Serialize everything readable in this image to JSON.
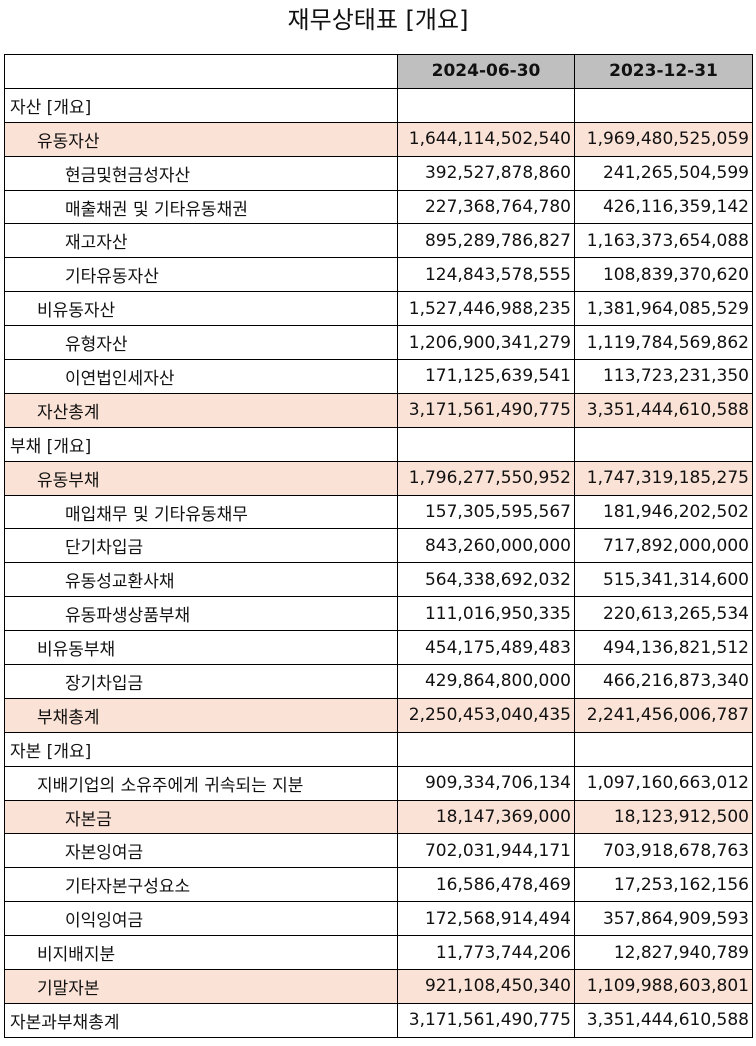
{
  "title": "재무상태표 [개요]",
  "columns": [
    "2024-06-30",
    "2023-12-31"
  ],
  "rows": [
    {
      "label": "자산 [개요]",
      "level": 0,
      "highlight": false,
      "values": [
        "",
        ""
      ]
    },
    {
      "label": "유동자산",
      "level": 1,
      "highlight": true,
      "values": [
        "1,644,114,502,540",
        "1,969,480,525,059"
      ]
    },
    {
      "label": "현금및현금성자산",
      "level": 2,
      "highlight": false,
      "values": [
        "392,527,878,860",
        "241,265,504,599"
      ]
    },
    {
      "label": "매출채권 및 기타유동채권",
      "level": 2,
      "highlight": false,
      "values": [
        "227,368,764,780",
        "426,116,359,142"
      ]
    },
    {
      "label": "재고자산",
      "level": 2,
      "highlight": false,
      "values": [
        "895,289,786,827",
        "1,163,373,654,088"
      ]
    },
    {
      "label": "기타유동자산",
      "level": 2,
      "highlight": false,
      "values": [
        "124,843,578,555",
        "108,839,370,620"
      ]
    },
    {
      "label": "비유동자산",
      "level": 1,
      "highlight": false,
      "values": [
        "1,527,446,988,235",
        "1,381,964,085,529"
      ]
    },
    {
      "label": "유형자산",
      "level": 2,
      "highlight": false,
      "values": [
        "1,206,900,341,279",
        "1,119,784,569,862"
      ]
    },
    {
      "label": "이연법인세자산",
      "level": 2,
      "highlight": false,
      "values": [
        "171,125,639,541",
        "113,723,231,350"
      ]
    },
    {
      "label": "자산총계",
      "level": 1,
      "highlight": true,
      "values": [
        "3,171,561,490,775",
        "3,351,444,610,588"
      ]
    },
    {
      "label": "부채 [개요]",
      "level": 0,
      "highlight": false,
      "values": [
        "",
        ""
      ]
    },
    {
      "label": "유동부채",
      "level": 1,
      "highlight": true,
      "values": [
        "1,796,277,550,952",
        "1,747,319,185,275"
      ]
    },
    {
      "label": "매입채무 및 기타유동채무",
      "level": 2,
      "highlight": false,
      "values": [
        "157,305,595,567",
        "181,946,202,502"
      ]
    },
    {
      "label": "단기차입금",
      "level": 2,
      "highlight": false,
      "values": [
        "843,260,000,000",
        "717,892,000,000"
      ]
    },
    {
      "label": "유동성교환사채",
      "level": 2,
      "highlight": false,
      "values": [
        "564,338,692,032",
        "515,341,314,600"
      ]
    },
    {
      "label": "유동파생상품부채",
      "level": 2,
      "highlight": false,
      "values": [
        "111,016,950,335",
        "220,613,265,534"
      ]
    },
    {
      "label": "비유동부채",
      "level": 1,
      "highlight": false,
      "values": [
        "454,175,489,483",
        "494,136,821,512"
      ]
    },
    {
      "label": "장기차입금",
      "level": 2,
      "highlight": false,
      "values": [
        "429,864,800,000",
        "466,216,873,340"
      ]
    },
    {
      "label": "부채총계",
      "level": 1,
      "highlight": true,
      "values": [
        "2,250,453,040,435",
        "2,241,456,006,787"
      ]
    },
    {
      "label": "자본 [개요]",
      "level": 0,
      "highlight": false,
      "values": [
        "",
        ""
      ]
    },
    {
      "label": "지배기업의 소유주에게 귀속되는 지분",
      "level": 1,
      "highlight": false,
      "values": [
        "909,334,706,134",
        "1,097,160,663,012"
      ]
    },
    {
      "label": "자본금",
      "level": 2,
      "highlight": true,
      "values": [
        "18,147,369,000",
        "18,123,912,500"
      ]
    },
    {
      "label": "자본잉여금",
      "level": 2,
      "highlight": false,
      "values": [
        "702,031,944,171",
        "703,918,678,763"
      ]
    },
    {
      "label": "기타자본구성요소",
      "level": 2,
      "highlight": false,
      "values": [
        "16,586,478,469",
        "17,253,162,156"
      ]
    },
    {
      "label": "이익잉여금",
      "level": 2,
      "highlight": false,
      "values": [
        "172,568,914,494",
        "357,864,909,593"
      ]
    },
    {
      "label": "비지배지분",
      "level": 1,
      "highlight": false,
      "values": [
        "11,773,744,206",
        "12,827,940,789"
      ]
    },
    {
      "label": "기말자본",
      "level": 1,
      "highlight": true,
      "values": [
        "921,108,450,340",
        "1,109,988,603,801"
      ]
    },
    {
      "label": "자본과부채총계",
      "level": 0,
      "highlight": false,
      "values": [
        "3,171,561,490,775",
        "3,351,444,610,588"
      ]
    }
  ]
}
